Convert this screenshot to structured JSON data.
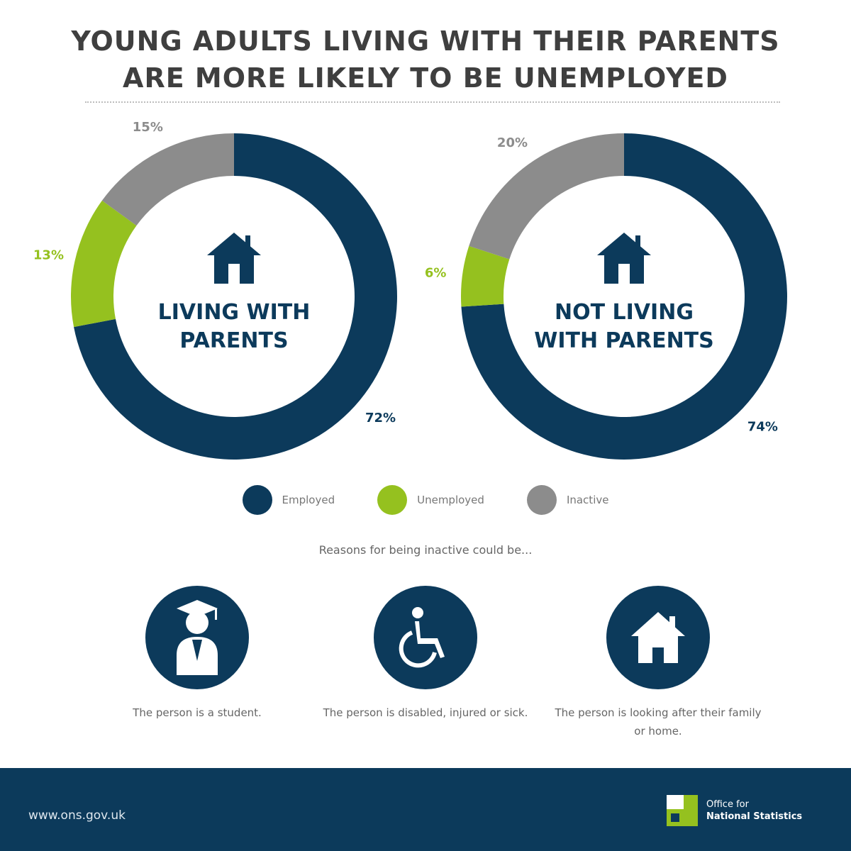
{
  "title_line1": "YOUNG ADULTS LIVING WITH THEIR PARENTS",
  "title_line2": "ARE MORE LIKELY TO BE UNEMPLOYED",
  "colors": {
    "employed": "#0c3a5b",
    "unemployed": "#95c11f",
    "inactive": "#8c8c8c"
  },
  "chart_data": [
    {
      "type": "pie",
      "subtype": "donut",
      "center_label_line1": "LIVING WITH",
      "center_label_line2": "PARENTS",
      "categories": [
        "Employed",
        "Unemployed",
        "Inactive"
      ],
      "values": [
        72,
        13,
        15
      ],
      "labels": [
        "72%",
        "13%",
        "15%"
      ]
    },
    {
      "type": "pie",
      "subtype": "donut",
      "center_label_line1": "NOT LIVING",
      "center_label_line2": "WITH PARENTS",
      "categories": [
        "Employed",
        "Unemployed",
        "Inactive"
      ],
      "values": [
        74,
        6,
        20
      ],
      "labels": [
        "74%",
        "6%",
        "20%"
      ]
    }
  ],
  "legend": [
    {
      "label": "Employed",
      "color": "#0c3a5b"
    },
    {
      "label": "Unemployed",
      "color": "#95c11f"
    },
    {
      "label": "Inactive",
      "color": "#8c8c8c"
    }
  ],
  "reasons_intro": "Reasons for being inactive could be...",
  "reasons": [
    {
      "icon": "student-icon",
      "text": "The person is a student."
    },
    {
      "icon": "wheelchair-icon",
      "text": "The person is disabled, injured or sick."
    },
    {
      "icon": "home-icon",
      "text": "The person is looking after their family or home."
    }
  ],
  "footer": {
    "url": "www.ons.gov.uk",
    "logo_line1": "Office for",
    "logo_line2": "National Statistics"
  }
}
